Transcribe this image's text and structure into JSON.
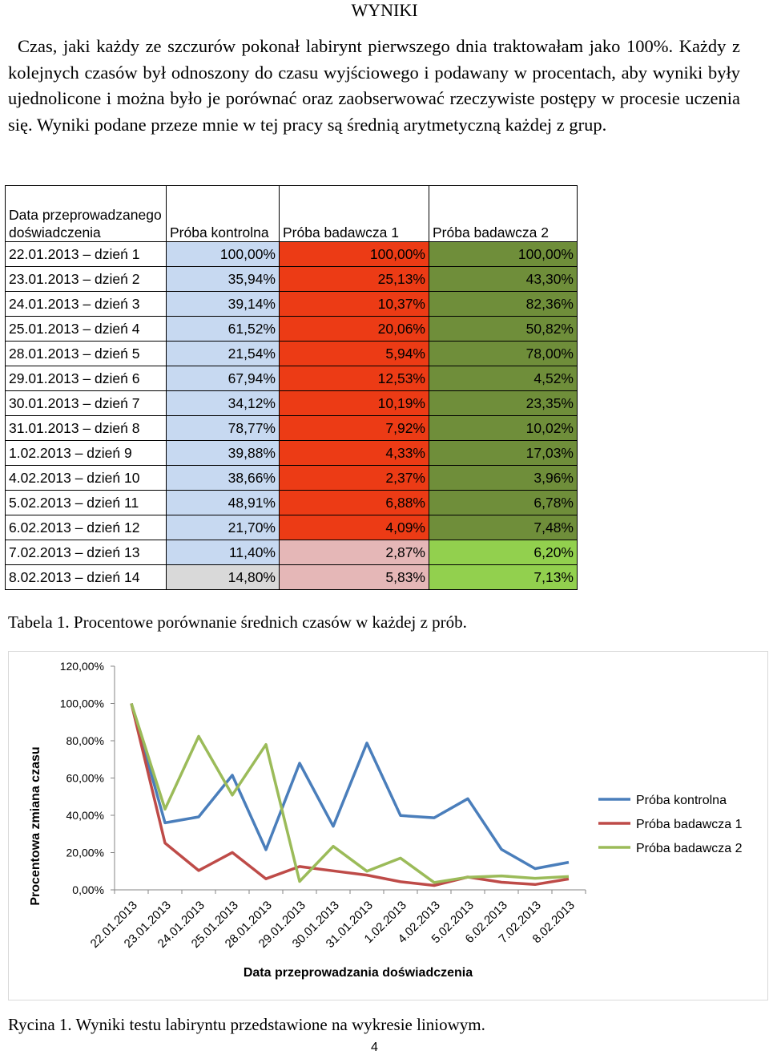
{
  "heading": "WYNIKI",
  "paragraph": "Czas, jaki każdy ze szczurów pokonał labirynt pierwszego dnia traktowałam jako 100%. Każdy z kolejnych czasów był odnoszony do czasu wyjściowego i podawany w procentach, aby wyniki były ujednolicone i można było je porównać oraz zaobserwować rzeczywiste postępy w procesie uczenia się. Wyniki podane przeze mnie w tej pracy są średnią arytmetyczną każdej z grup.",
  "table": {
    "headers": [
      "Data przeprowadzanego doświadczenia",
      "Próba kontrolna",
      "Próba badawcza 1",
      "Próba badawcza 2"
    ],
    "rows": [
      [
        "22.01.2013 – dzień 1",
        "100,00%",
        "100,00%",
        "100,00%"
      ],
      [
        "23.01.2013 – dzień 2",
        "35,94%",
        "25,13%",
        "43,30%"
      ],
      [
        "24.01.2013 – dzień 3",
        "39,14%",
        "10,37%",
        "82,36%"
      ],
      [
        "25.01.2013 – dzień 4",
        "61,52%",
        "20,06%",
        "50,82%"
      ],
      [
        "28.01.2013 – dzień 5",
        "21,54%",
        "5,94%",
        "78,00%"
      ],
      [
        "29.01.2013 – dzień 6",
        "67,94%",
        "12,53%",
        "4,52%"
      ],
      [
        "30.01.2013 – dzień 7",
        "34,12%",
        "10,19%",
        "23,35%"
      ],
      [
        "31.01.2013 – dzień 8",
        "78,77%",
        "7,92%",
        "10,02%"
      ],
      [
        "1.02.2013 – dzień 9",
        "39,88%",
        "4,33%",
        "17,03%"
      ],
      [
        "4.02.2013 – dzień 10",
        "38,66%",
        "2,37%",
        "3,96%"
      ],
      [
        "5.02.2013 – dzień 11",
        "48,91%",
        "6,88%",
        "6,78%"
      ],
      [
        "6.02.2013 – dzień 12",
        "21,70%",
        "4,09%",
        "7,48%"
      ],
      [
        "7.02.2013 – dzień 13",
        "11,40%",
        "2,87%",
        "6,20%"
      ],
      [
        "8.02.2013 – dzień 14",
        "14,80%",
        "5,83%",
        "7,13%"
      ]
    ],
    "colors": {
      "control": "#c7d9f1",
      "control_last": "#d9d9d9",
      "test1": "#ec3b15",
      "test1_last": "#e5b7b7",
      "test2": "#6f8e3a",
      "test2_last": "#92d04e"
    }
  },
  "table_caption": "Tabela 1. Procentowe porównanie średnich czasów w każdej z prób.",
  "chart_data": {
    "type": "line",
    "xlabel": "Data  przeprowadzania doświadczenia",
    "ylabel": "Procentowa zmiana czasu",
    "ylim": [
      0,
      120
    ],
    "y_ticks": [
      "0,00%",
      "20,00%",
      "40,00%",
      "60,00%",
      "80,00%",
      "100,00%",
      "120,00%"
    ],
    "categories": [
      "22.01.2013",
      "23.01.2013",
      "24.01.2013",
      "25.01.2013",
      "28.01.2013",
      "29.01.2013",
      "30.01.2013",
      "31.01.2013",
      "1.02.2013",
      "4.02.2013",
      "5.02.2013",
      "6.02.2013",
      "7.02.2013",
      "8.02.2013"
    ],
    "series": [
      {
        "name": "Próba kontrolna",
        "color": "#4a7ebb",
        "values": [
          100,
          35.94,
          39.14,
          61.52,
          21.54,
          67.94,
          34.12,
          78.77,
          39.88,
          38.66,
          48.91,
          21.7,
          11.4,
          14.8
        ]
      },
      {
        "name": "Próba badawcza 1",
        "color": "#be4b48",
        "values": [
          100,
          25.13,
          10.37,
          20.06,
          5.94,
          12.53,
          10.19,
          7.92,
          4.33,
          2.37,
          6.88,
          4.09,
          2.87,
          5.83
        ]
      },
      {
        "name": "Próba badawcza 2",
        "color": "#9bbb59",
        "values": [
          100,
          43.3,
          82.36,
          50.82,
          78.0,
          4.52,
          23.35,
          10.02,
          17.03,
          3.96,
          6.78,
          7.48,
          6.2,
          7.13
        ]
      }
    ],
    "legend": "right",
    "grid": false
  },
  "figure_caption": "Rycina 1. Wyniki testu labiryntu przedstawione na wykresie liniowym.",
  "page_number": "4"
}
